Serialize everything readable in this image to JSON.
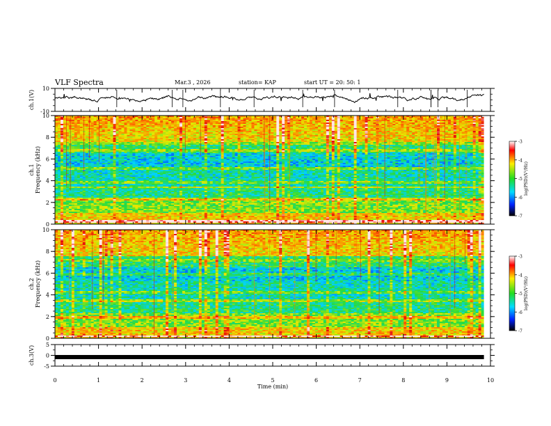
{
  "header": {
    "title": "VLF Spectra",
    "date": "Mar.3  , 2026",
    "station": "station= KAP",
    "start": "start  UT  =   20: 50: 1"
  },
  "chart_data": [
    {
      "type": "line",
      "name": "ch1-waveform",
      "ylabel": "ch.1(V)",
      "ylim": [
        -10,
        10
      ],
      "y_ticks": [
        "10",
        "-10"
      ],
      "x_range": [
        0,
        9.85
      ],
      "description_values": "oscillating signal around ~+2 V, amplitude roughly 3-4 V"
    },
    {
      "type": "heatmap",
      "name": "ch1-spectrogram",
      "channel_label": "ch.1",
      "ylabel": "Frequency (kHz)",
      "ylim": [
        0,
        10
      ],
      "y_ticks": [
        "0",
        "2",
        "4",
        "6",
        "8",
        "10"
      ],
      "x_range": [
        0,
        9.85
      ],
      "colorbar": {
        "label": "log(PSD)(V²/Hz)",
        "range": [
          -7,
          -3
        ],
        "ticks": [
          "-3",
          "-4",
          "-5",
          "-6",
          "-7"
        ]
      }
    },
    {
      "type": "heatmap",
      "name": "ch2-spectrogram",
      "channel_label": "ch.2",
      "ylabel": "Frequency (kHz)",
      "ylim": [
        0,
        10
      ],
      "y_ticks": [
        "0",
        "2",
        "4",
        "6",
        "8",
        "10"
      ],
      "x_range": [
        0,
        9.85
      ],
      "colorbar": {
        "label": "log(PSD)(V²/Hz)",
        "range": [
          -7,
          -3
        ],
        "ticks": [
          "-3",
          "-4",
          "-5",
          "-6",
          "-7"
        ]
      }
    },
    {
      "type": "line",
      "name": "ch3-waveform",
      "ylabel": "ch.3(V)",
      "ylim": [
        -5,
        5
      ],
      "y_ticks": [
        "5",
        "0",
        "-5"
      ],
      "x_range": [
        0,
        9.85
      ],
      "level": -0.8
    }
  ],
  "x_axis": {
    "label": "Time  (min)",
    "ticks": [
      "0",
      "1",
      "2",
      "3",
      "4",
      "5",
      "6",
      "7",
      "8",
      "9",
      "10"
    ],
    "range": [
      0,
      10
    ]
  }
}
